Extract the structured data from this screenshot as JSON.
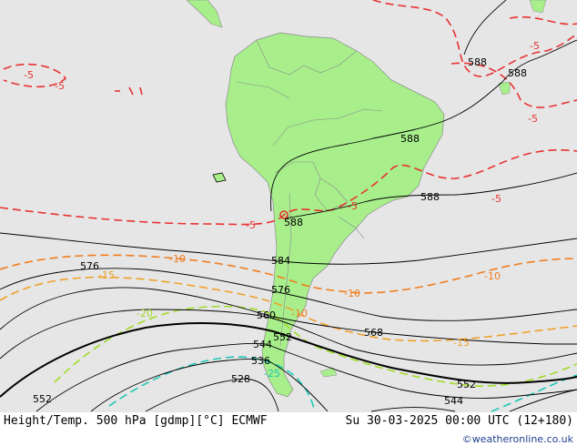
{
  "map": {
    "title": "Height/Temp. 500 hPa [gdmp][°C] ECMWF",
    "valid_time": "Su 30-03-2025 00:00 UTC (12+180)",
    "credit": "©weatheronline.co.uk",
    "colors": {
      "ocean": "#e6e6e6",
      "land": "#a8ef8c",
      "border": "#8a8a8a",
      "height_contour": "#000000",
      "temp_minus5": "#e83232",
      "temp_minus10": "#f07d1e",
      "temp_minus15": "#f0a028",
      "temp_minus20": "#a0dc28",
      "temp_minus25": "#1ec8b4"
    },
    "height_labels": [
      "588",
      "588",
      "588",
      "588",
      "588",
      "584",
      "576",
      "576",
      "568",
      "560",
      "552",
      "552",
      "552",
      "544",
      "544",
      "536",
      "528"
    ],
    "temp_labels": [
      "-5",
      "-5",
      "-5",
      "-5",
      "-5",
      "-5",
      "-5",
      "-10",
      "-10",
      "-10",
      "-10",
      "-15",
      "-15",
      "-20",
      "-25"
    ]
  }
}
